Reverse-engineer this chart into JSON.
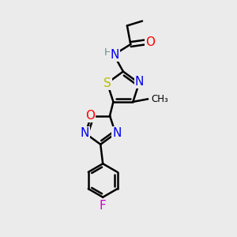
{
  "bg_color": "#ebebeb",
  "bond_color": "#000000",
  "bond_width": 1.8,
  "atom_colors": {
    "N": "#0000ee",
    "O": "#ff0000",
    "S": "#bbbb00",
    "F": "#cc00cc",
    "H": "#6a8a8a",
    "C": "#000000"
  },
  "font_size": 10,
  "fig_width": 3.0,
  "fig_height": 3.0,
  "xlim": [
    0,
    10
  ],
  "ylim": [
    0,
    10
  ]
}
